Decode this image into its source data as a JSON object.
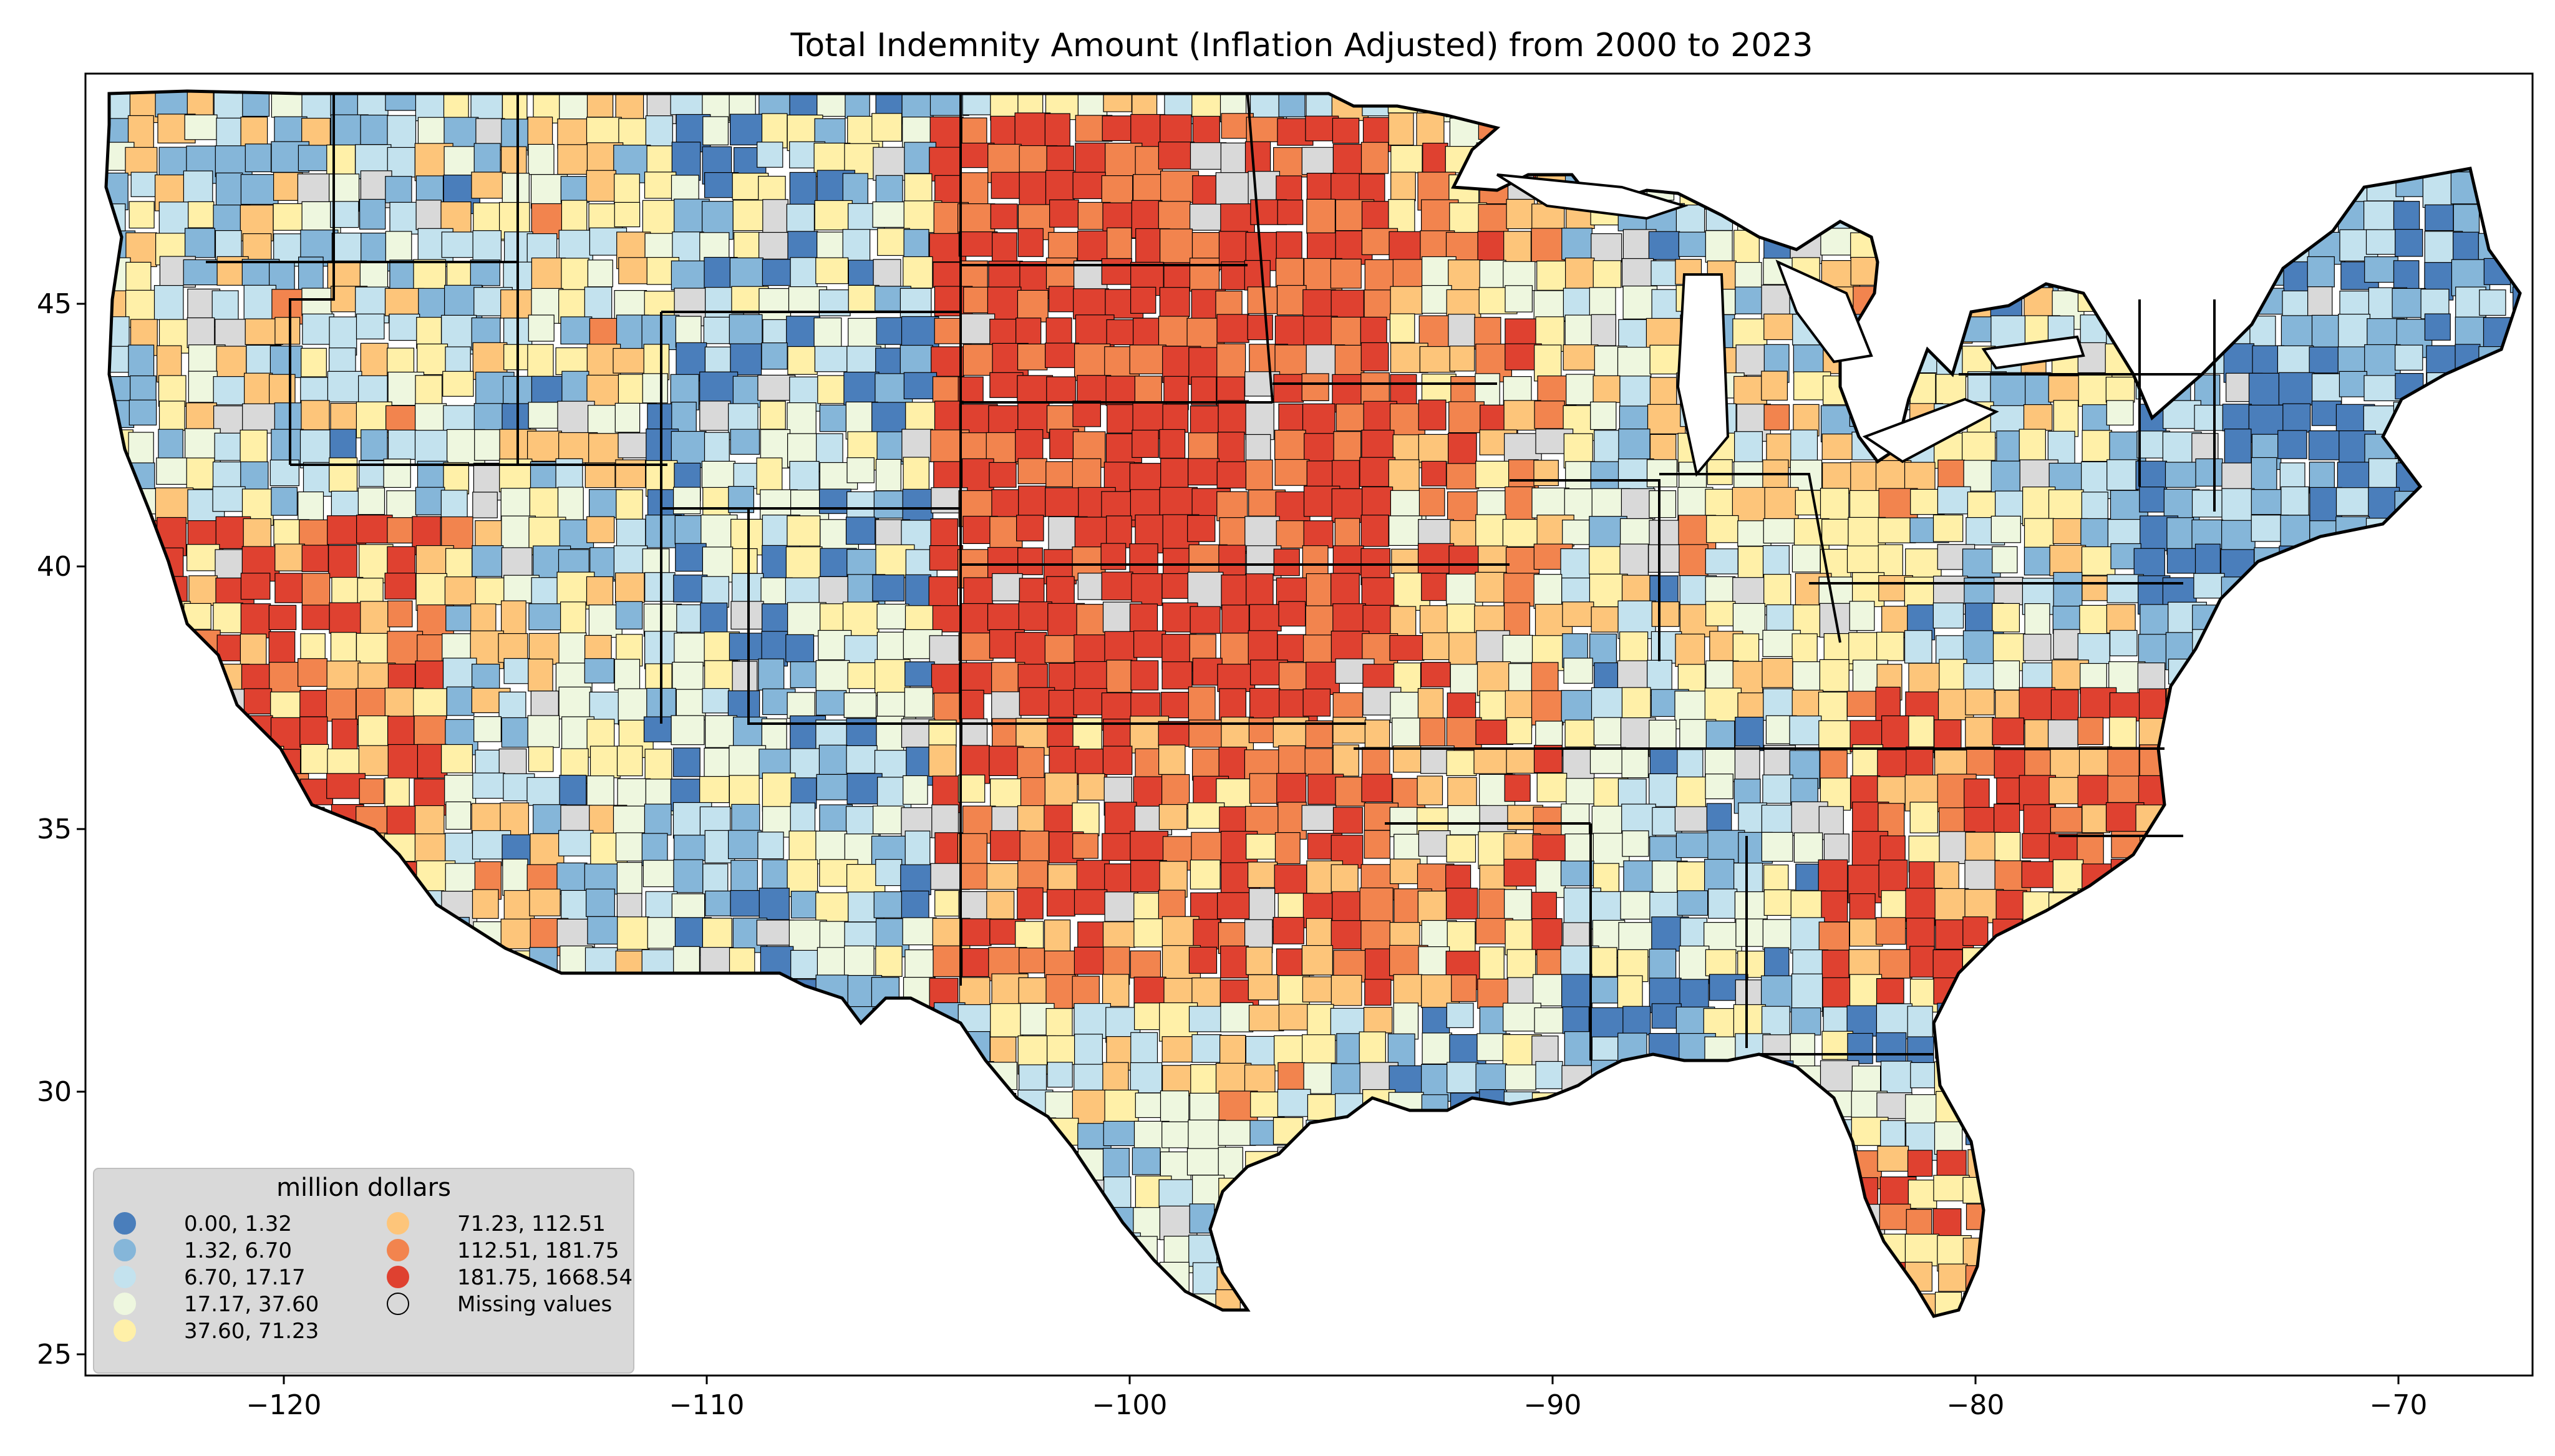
{
  "title": "Total Indemnity Amount  (Inflation Adjusted) from 2000 to 2023",
  "x_ticks": [
    "−120",
    "−110",
    "−100",
    "−90",
    "−80",
    "−70"
  ],
  "y_ticks": [
    "45",
    "40",
    "35",
    "30",
    "25"
  ],
  "legend": {
    "title": "million dollars",
    "classes": [
      {
        "label": "0.00,    1.32",
        "color": "#4a7ebb"
      },
      {
        "label": "1.32,    6.70",
        "color": "#85b6d9"
      },
      {
        "label": "6.70,   17.17",
        "color": "#c3e2ee"
      },
      {
        "label": "17.17,   37.60",
        "color": "#eef7df"
      },
      {
        "label": "37.60,   71.23",
        "color": "#fff0a8"
      },
      {
        "label": "71.23,  112.51",
        "color": "#fdc57a"
      },
      {
        "label": "112.51,  181.75",
        "color": "#f2844e"
      },
      {
        "label": "181.75, 1668.54",
        "color": "#df4130"
      },
      {
        "label": "Missing values",
        "color": "#d9d9d9"
      }
    ]
  },
  "map": {
    "region": "contiguous United States",
    "units": "county",
    "lon_range": [
      -125,
      -66.5
    ],
    "lat_range": [
      24.5,
      49.5
    ]
  }
}
